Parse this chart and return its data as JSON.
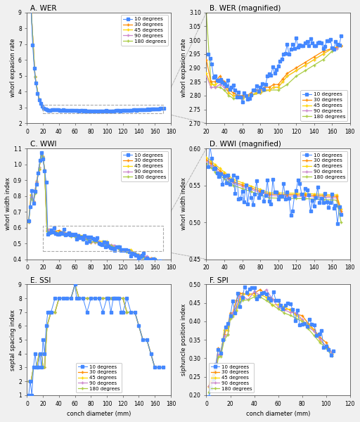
{
  "title_A": "A. WER",
  "title_B": "B. WER (magnified)",
  "title_C": "C. WWI",
  "title_D": "D. WWI (magnified)",
  "title_E": "E. SSI",
  "title_F": "F. SPI",
  "ylabel_A": "whorl expasion rate",
  "ylabel_B": "whorl expasion rate",
  "ylabel_C": "whorl width index",
  "ylabel_D": "whorl width index",
  "ylabel_E": "septal spacing index",
  "ylabel_F": "siphuncle position index",
  "xlabel": "conch diameter (mm)",
  "legend_labels": [
    "10 degrees",
    "30 degrees",
    "45 degrees",
    "90 degrees",
    "180 degrees"
  ],
  "colors_10": "#4488FF",
  "colors_30": "#FF8C00",
  "colors_45": "#FFD700",
  "colors_90": "#CC88CC",
  "colors_180": "#AACC44",
  "bg_color": "#F0F0F0",
  "ax_bg": "white"
}
